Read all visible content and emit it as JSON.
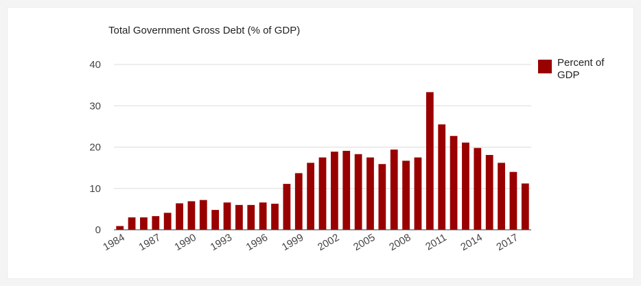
{
  "chart_data": {
    "type": "bar",
    "title": "Total Government Gross Debt (% of GDP)",
    "xlabel": "",
    "ylabel": "",
    "ylim": [
      0,
      40
    ],
    "yticks": [
      0,
      10,
      20,
      30,
      40
    ],
    "grid": true,
    "legend_position": "right",
    "x_tick_labels": [
      "1984",
      "1987",
      "1990",
      "1993",
      "1996",
      "1999",
      "2002",
      "2005",
      "2008",
      "2011",
      "2014",
      "2017"
    ],
    "categories": [
      "1984",
      "1985",
      "1986",
      "1987",
      "1988",
      "1989",
      "1990",
      "1991",
      "1992",
      "1993",
      "1994",
      "1995",
      "1996",
      "1997",
      "1998",
      "1999",
      "2000",
      "2001",
      "2002",
      "2003",
      "2004",
      "2005",
      "2006",
      "2007",
      "2008",
      "2009",
      "2010",
      "2011",
      "2012",
      "2013",
      "2014",
      "2015",
      "2016",
      "2017",
      "2018"
    ],
    "series": [
      {
        "name": "Percent of GDP",
        "color": "#990000",
        "values": [
          0.9,
          3.0,
          3.0,
          3.3,
          4.1,
          6.4,
          6.9,
          7.2,
          4.8,
          6.6,
          6.0,
          6.0,
          6.6,
          6.3,
          11.1,
          13.7,
          16.2,
          17.5,
          18.9,
          19.1,
          18.3,
          17.5,
          15.9,
          19.4,
          16.7,
          17.5,
          33.3,
          25.5,
          22.7,
          21.1,
          19.8,
          18.1,
          16.2,
          14.0,
          11.2
        ]
      }
    ]
  },
  "colors": {
    "bar": "#990000",
    "grid": "#dcdcdc",
    "axis": "#333333"
  }
}
